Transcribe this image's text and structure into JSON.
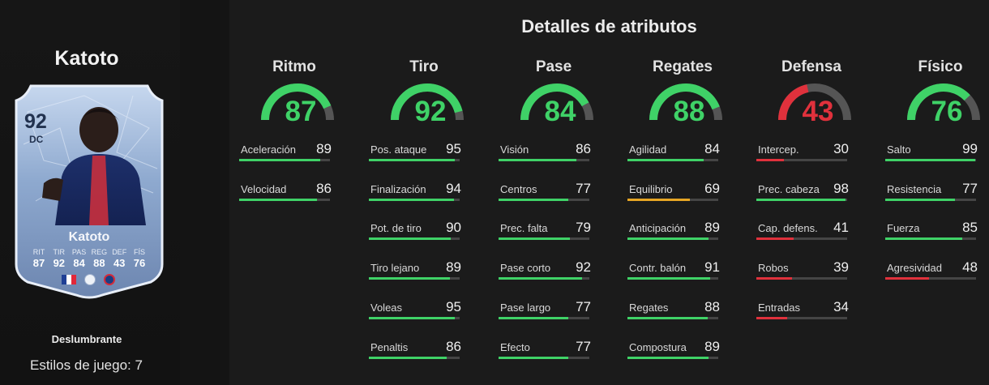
{
  "player": {
    "name": "Katoto",
    "rating": "92",
    "position": "DC",
    "card_name": "Katoto",
    "card_stats": [
      {
        "label": "RIT",
        "value": "87"
      },
      {
        "label": "TIR",
        "value": "92"
      },
      {
        "label": "PAS",
        "value": "84"
      },
      {
        "label": "REG",
        "value": "88"
      },
      {
        "label": "DEF",
        "value": "43"
      },
      {
        "label": "FÍS",
        "value": "76"
      }
    ],
    "playstyle": "Deslumbrante",
    "playstyles_count": "Estilos de juego: 7"
  },
  "panel": {
    "title": "Detalles de atributos"
  },
  "colors": {
    "high": "#3fd267",
    "mid": "#e6a524",
    "low": "#e0313c"
  },
  "categories": [
    {
      "name": "Ritmo",
      "value": 87,
      "attributes": [
        {
          "label": "Aceleración",
          "value": 89
        },
        {
          "label": "Velocidad",
          "value": 86
        }
      ]
    },
    {
      "name": "Tiro",
      "value": 92,
      "attributes": [
        {
          "label": "Pos. ataque",
          "value": 95
        },
        {
          "label": "Finalización",
          "value": 94
        },
        {
          "label": "Pot. de tiro",
          "value": 90
        },
        {
          "label": "Tiro lejano",
          "value": 89
        },
        {
          "label": "Voleas",
          "value": 95
        },
        {
          "label": "Penaltis",
          "value": 86
        }
      ]
    },
    {
      "name": "Pase",
      "value": 84,
      "attributes": [
        {
          "label": "Visión",
          "value": 86
        },
        {
          "label": "Centros",
          "value": 77
        },
        {
          "label": "Prec. falta",
          "value": 79
        },
        {
          "label": "Pase corto",
          "value": 92
        },
        {
          "label": "Pase largo",
          "value": 77
        },
        {
          "label": "Efecto",
          "value": 77
        }
      ]
    },
    {
      "name": "Regates",
      "value": 88,
      "attributes": [
        {
          "label": "Agilidad",
          "value": 84
        },
        {
          "label": "Equilibrio",
          "value": 69
        },
        {
          "label": "Anticipación",
          "value": 89
        },
        {
          "label": "Contr. balón",
          "value": 91
        },
        {
          "label": "Regates",
          "value": 88
        },
        {
          "label": "Compostura",
          "value": 89
        }
      ]
    },
    {
      "name": "Defensa",
      "value": 43,
      "attributes": [
        {
          "label": "Intercep.",
          "value": 30
        },
        {
          "label": "Prec. cabeza",
          "value": 98
        },
        {
          "label": "Cap. defens.",
          "value": 41
        },
        {
          "label": "Robos",
          "value": 39
        },
        {
          "label": "Entradas",
          "value": 34
        }
      ]
    },
    {
      "name": "Físico",
      "value": 76,
      "attributes": [
        {
          "label": "Salto",
          "value": 99
        },
        {
          "label": "Resistencia",
          "value": 77
        },
        {
          "label": "Fuerza",
          "value": 85
        },
        {
          "label": "Agresividad",
          "value": 48
        }
      ]
    }
  ]
}
